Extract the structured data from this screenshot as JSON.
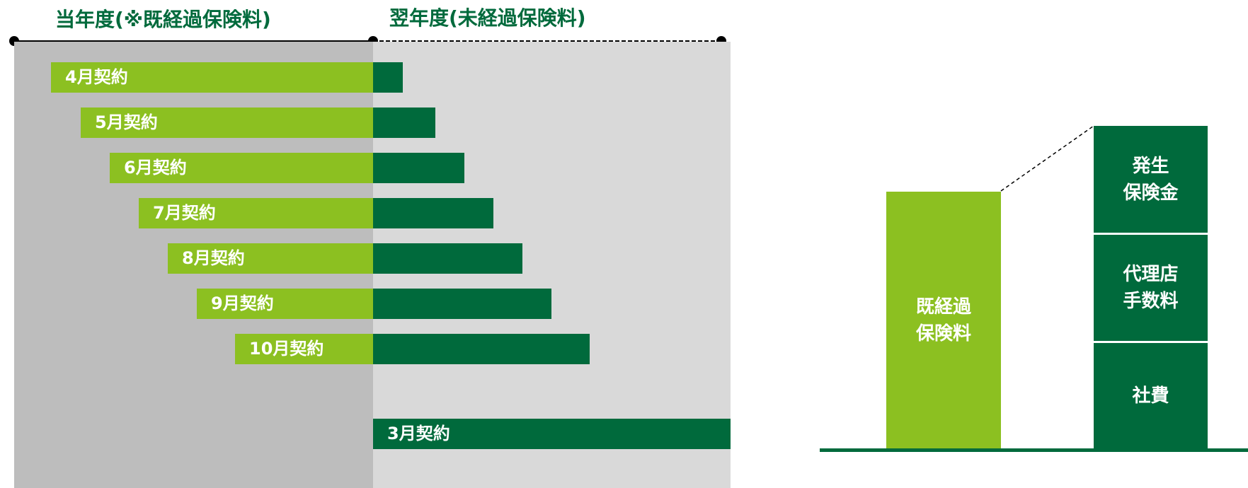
{
  "headers": {
    "current_year": "当年度(※既経過保険料)",
    "next_year": "翌年度(未経過保険料)"
  },
  "contracts": [
    {
      "label": "4月契約"
    },
    {
      "label": "5月契約"
    },
    {
      "label": "6月契約"
    },
    {
      "label": "7月契約"
    },
    {
      "label": "8月契約"
    },
    {
      "label": "9月契約"
    },
    {
      "label": "10月契約"
    },
    {
      "label": "3月契約"
    }
  ],
  "breakdown": {
    "earned_premium": "既経過\n保険料",
    "components": [
      {
        "label": "発生\n保険金"
      },
      {
        "label": "代理店\n手数料"
      },
      {
        "label": "社費"
      }
    ]
  },
  "colors": {
    "light_green": "#8cc021",
    "dark_green": "#006a3c",
    "current_bg": "#bdbdbd",
    "next_bg": "#d9d9d9"
  }
}
